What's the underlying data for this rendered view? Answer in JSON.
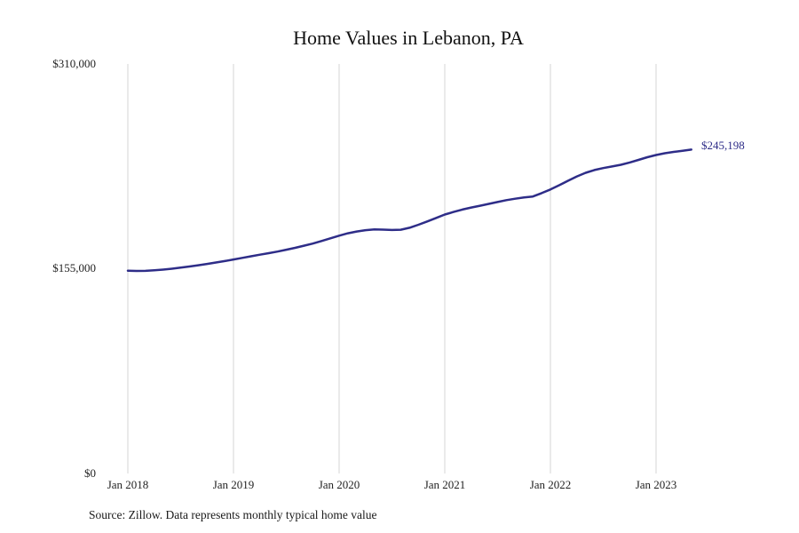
{
  "footer": {
    "source": "Source: Zillow. Data represents monthly typical home value"
  },
  "chart_data": {
    "type": "line",
    "title": "Home Values in Lebanon, PA",
    "xlabel": "",
    "ylabel": "",
    "ylim": [
      0,
      310000
    ],
    "grid": "vertical-only",
    "legend_position": "none",
    "line_color": "#2e2d88",
    "gridline_color": "#d4d4d4",
    "end_label": "$245,198",
    "x_start": "Jan 2018",
    "x_frequency": "monthly",
    "xtick_labels": [
      "Jan 2018",
      "Jan 2019",
      "Jan 2020",
      "Jan 2021",
      "Jan 2022",
      "Jan 2023"
    ],
    "ytick_labels": [
      "$310,000",
      "$155,000",
      "$0"
    ],
    "series": [
      {
        "name": "Typical home value",
        "values": [
          153500,
          153300,
          153400,
          153800,
          154300,
          155000,
          155800,
          156700,
          157600,
          158600,
          159700,
          160800,
          162000,
          163200,
          164400,
          165600,
          166800,
          168000,
          169400,
          170800,
          172400,
          174000,
          176000,
          178000,
          180000,
          181800,
          183200,
          184200,
          184800,
          184600,
          184300,
          184500,
          186000,
          188300,
          190800,
          193400,
          196000,
          198000,
          199800,
          201300,
          202700,
          204100,
          205500,
          206900,
          208000,
          208900,
          209700,
          212200,
          215000,
          218200,
          221600,
          224900,
          227600,
          229700,
          231200,
          232400,
          233700,
          235400,
          237400,
          239400,
          241100,
          242400,
          243400,
          244300,
          245198
        ]
      }
    ]
  }
}
